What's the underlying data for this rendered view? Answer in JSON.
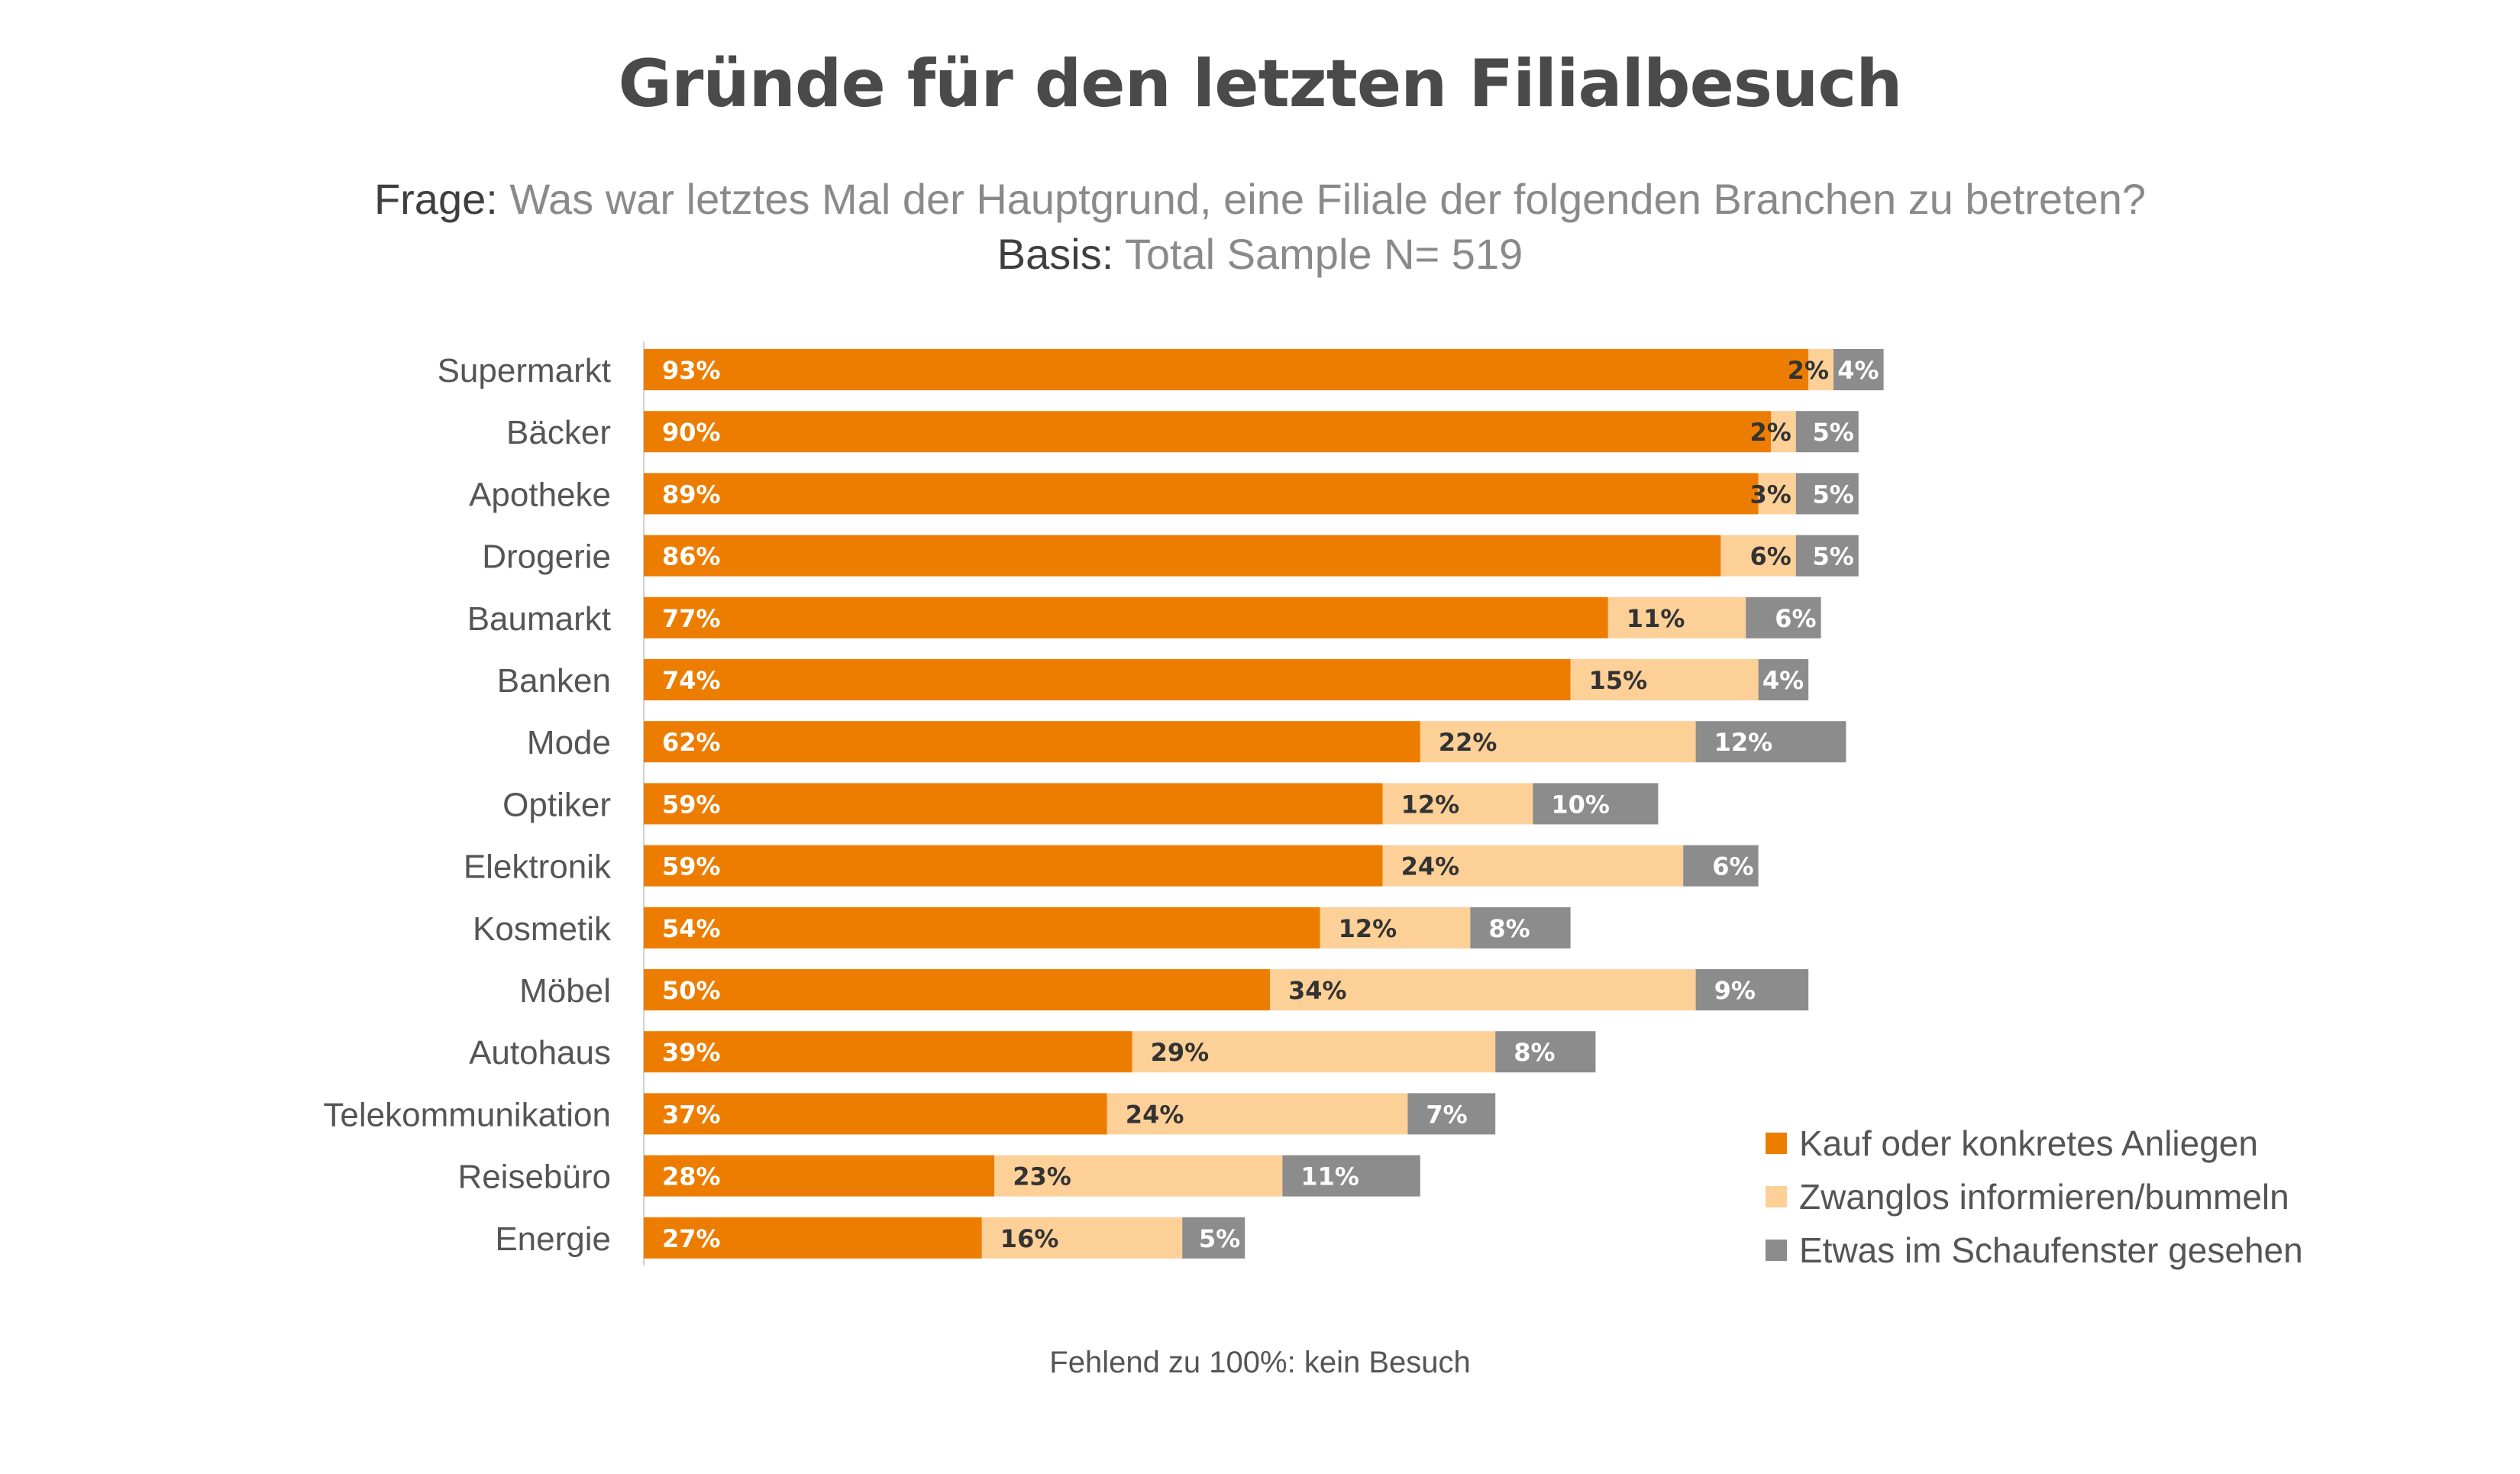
{
  "title": "Gründe für den letzten Filialbesuch",
  "subtitle": {
    "question_label": "Frage:",
    "question_text": "Was war letztes Mal der Hauptgrund, eine Filiale der folgenden Branchen zu betreten?",
    "basis_label": "Basis:",
    "basis_text": "Total Sample N= 519"
  },
  "footnote": "Fehlend zu 100%: kein Besuch",
  "chart_data": {
    "type": "bar",
    "orientation": "horizontal",
    "stacked": true,
    "categories": [
      "Supermarkt",
      "Bäcker",
      "Apotheke",
      "Drogerie",
      "Baumarkt",
      "Banken",
      "Mode",
      "Optiker",
      "Elektronik",
      "Kosmetik",
      "Möbel",
      "Autohaus",
      "Telekommunikation",
      "Reisebüro",
      "Energie"
    ],
    "series": [
      {
        "name": "Kauf oder konkretes Anliegen",
        "color": "#ED7D00",
        "label_color": "#ffffff",
        "values": [
          93,
          90,
          89,
          86,
          77,
          74,
          62,
          59,
          59,
          54,
          50,
          39,
          37,
          28,
          27
        ]
      },
      {
        "name": "Zwanglos informieren/bummeln",
        "color": "#FDD098",
        "label_color": "#333333",
        "values": [
          2,
          2,
          3,
          6,
          11,
          15,
          22,
          12,
          24,
          12,
          34,
          29,
          24,
          23,
          16
        ]
      },
      {
        "name": "Etwas im Schaufenster gesehen",
        "color": "#8C8C8C",
        "label_color": "#ffffff",
        "values": [
          4,
          5,
          5,
          5,
          6,
          4,
          12,
          10,
          6,
          8,
          9,
          8,
          7,
          11,
          5
        ]
      }
    ],
    "value_suffix": "%",
    "xlim": [
      0,
      100
    ],
    "grid": false,
    "legend_position": "bottom-right"
  }
}
